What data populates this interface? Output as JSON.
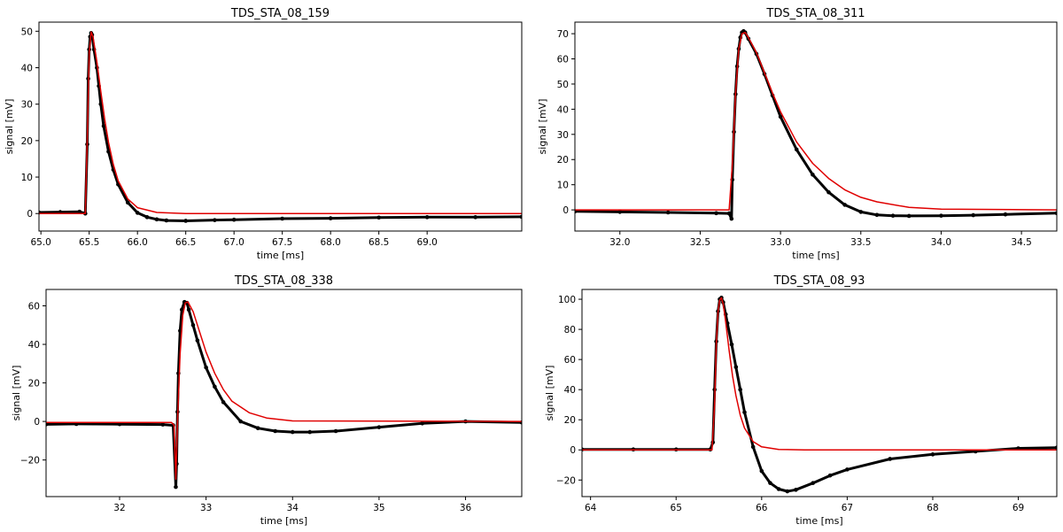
{
  "chart_data": [
    {
      "type": "line",
      "title": "TDS_STA_08_159",
      "xlabel": "time [ms]",
      "ylabel": "signal [mV]",
      "xlim": [
        64.98,
        69.98
      ],
      "ylim": [
        -4.8,
        52.5
      ],
      "xticks": [
        "65.0",
        "65.5",
        "66.0",
        "66.5",
        "67.0",
        "67.5",
        "68.0",
        "68.5",
        "69.0"
      ],
      "xtick_values": [
        65.0,
        65.5,
        66.0,
        66.5,
        67.0,
        67.5,
        68.0,
        68.5,
        69.0
      ],
      "yticks": [
        "0",
        "10",
        "20",
        "30",
        "40",
        "50"
      ],
      "ytick_values": [
        0,
        10,
        20,
        30,
        40,
        50
      ],
      "grid": false,
      "series": [
        {
          "kind": "points",
          "color": "#000000",
          "x": [
            64.98,
            65.2,
            65.4,
            65.46,
            65.48,
            65.49,
            65.5,
            65.51,
            65.52,
            65.53,
            65.55,
            65.58,
            65.6,
            65.62,
            65.65,
            65.7,
            65.75,
            65.8,
            65.9,
            66.0,
            66.1,
            66.2,
            66.3,
            66.5,
            66.8,
            67.0,
            67.5,
            68.0,
            68.5,
            69.0,
            69.5,
            69.98
          ],
          "y": [
            0.3,
            0.4,
            0.5,
            0.0,
            19.0,
            37.0,
            45.0,
            48.5,
            49.5,
            49.0,
            45.0,
            40.0,
            35.0,
            30.0,
            24.0,
            17.0,
            12.0,
            8.0,
            3.0,
            0.2,
            -1.0,
            -1.6,
            -1.9,
            -2.0,
            -1.8,
            -1.7,
            -1.4,
            -1.3,
            -1.1,
            -1.0,
            -1.0,
            -0.9
          ]
        },
        {
          "kind": "fit",
          "color": "#e00000",
          "x": [
            64.98,
            65.46,
            65.48,
            65.5,
            65.52,
            65.54,
            65.58,
            65.62,
            65.66,
            65.7,
            65.75,
            65.8,
            65.9,
            66.0,
            66.2,
            66.5,
            69.98
          ],
          "y": [
            0.0,
            0.0,
            20.0,
            44.0,
            49.8,
            48.5,
            41.5,
            33.5,
            26.0,
            19.5,
            13.5,
            9.0,
            4.0,
            1.6,
            0.3,
            0.0,
            0.0
          ]
        }
      ]
    },
    {
      "type": "line",
      "title": "TDS_STA_08_311",
      "xlabel": "time [ms]",
      "ylabel": "signal [mV]",
      "xlim": [
        31.72,
        34.72
      ],
      "ylim": [
        -8.4,
        74.6
      ],
      "xticks": [
        "32.0",
        "32.5",
        "33.0",
        "33.5",
        "34.0",
        "34.5"
      ],
      "xtick_values": [
        32.0,
        32.5,
        33.0,
        33.5,
        34.0,
        34.5
      ],
      "yticks": [
        "0",
        "10",
        "20",
        "30",
        "40",
        "50",
        "60",
        "70"
      ],
      "ytick_values": [
        0,
        10,
        20,
        30,
        40,
        50,
        60,
        70
      ],
      "grid": false,
      "series": [
        {
          "kind": "points",
          "color": "#000000",
          "x": [
            31.72,
            32.0,
            32.3,
            32.6,
            32.68,
            32.695,
            32.7,
            32.71,
            32.72,
            32.73,
            32.74,
            32.75,
            32.76,
            32.77,
            32.78,
            32.8,
            32.85,
            32.9,
            32.95,
            33.0,
            33.1,
            33.2,
            33.3,
            33.4,
            33.5,
            33.6,
            33.7,
            33.8,
            34.0,
            34.2,
            34.4,
            34.72
          ],
          "y": [
            -0.6,
            -0.8,
            -1.0,
            -1.3,
            -1.4,
            -3.5,
            12.0,
            31.0,
            46.0,
            57.0,
            64.0,
            68.5,
            70.5,
            71.0,
            70.5,
            68.0,
            62.0,
            54.0,
            45.5,
            37.0,
            24.0,
            14.0,
            7.0,
            2.0,
            -0.8,
            -2.0,
            -2.3,
            -2.4,
            -2.3,
            -2.1,
            -1.8,
            -1.3
          ]
        },
        {
          "kind": "fit",
          "color": "#e00000",
          "x": [
            31.72,
            32.68,
            32.7,
            32.72,
            32.74,
            32.76,
            32.78,
            32.8,
            32.85,
            32.9,
            32.95,
            33.0,
            33.1,
            33.2,
            33.3,
            33.4,
            33.5,
            33.6,
            33.8,
            34.0,
            34.72
          ],
          "y": [
            0.0,
            0.0,
            18.0,
            46.0,
            64.0,
            70.0,
            70.5,
            68.5,
            62.5,
            54.5,
            46.5,
            39.0,
            27.0,
            18.5,
            12.5,
            8.0,
            5.0,
            3.2,
            1.0,
            0.3,
            0.0
          ]
        }
      ]
    },
    {
      "type": "line",
      "title": "TDS_STA_08_338",
      "xlabel": "time [ms]",
      "ylabel": "signal [mV]",
      "xlim": [
        31.15,
        36.65
      ],
      "ylim": [
        -39.0,
        68.5
      ],
      "xticks": [
        "32",
        "33",
        "34",
        "35",
        "36"
      ],
      "xtick_values": [
        32,
        33,
        34,
        35,
        36
      ],
      "yticks": [
        "−20",
        "0",
        "20",
        "40",
        "60"
      ],
      "ytick_values": [
        -20,
        0,
        20,
        40,
        60
      ],
      "grid": false,
      "series": [
        {
          "kind": "points",
          "color": "#000000",
          "x": [
            31.15,
            31.5,
            32.0,
            32.5,
            32.62,
            32.65,
            32.66,
            32.67,
            32.68,
            32.7,
            32.72,
            32.75,
            32.78,
            32.8,
            32.85,
            32.9,
            33.0,
            33.1,
            33.2,
            33.4,
            33.6,
            33.8,
            34.0,
            34.2,
            34.5,
            35.0,
            35.5,
            36.0,
            36.65
          ],
          "y": [
            -1.5,
            -1.3,
            -1.4,
            -1.6,
            -2.0,
            -34.0,
            -22.0,
            5.0,
            25.0,
            47.0,
            58.0,
            62.0,
            61.5,
            58.0,
            50.0,
            42.0,
            28.0,
            18.0,
            10.0,
            0.0,
            -3.5,
            -5.0,
            -5.5,
            -5.5,
            -5.0,
            -3.0,
            -1.0,
            0.0,
            -0.5
          ]
        },
        {
          "kind": "fit",
          "color": "#e00000",
          "x": [
            31.15,
            32.6,
            32.63,
            32.65,
            32.67,
            32.7,
            32.73,
            32.76,
            32.79,
            32.85,
            32.9,
            33.0,
            33.1,
            33.2,
            33.3,
            33.5,
            33.7,
            34.0,
            36.65
          ],
          "y": [
            -0.5,
            -0.5,
            -2.0,
            -30.0,
            0.0,
            35.0,
            55.0,
            61.5,
            62.0,
            57.0,
            50.0,
            36.0,
            25.0,
            16.5,
            10.5,
            4.5,
            1.8,
            0.3,
            0.0
          ]
        }
      ]
    },
    {
      "type": "line",
      "title": "TDS_STA_08_93",
      "xlabel": "time [ms]",
      "ylabel": "signal [mV]",
      "xlim": [
        63.9,
        69.45
      ],
      "ylim": [
        -31.0,
        106.5
      ],
      "xticks": [
        "64",
        "65",
        "66",
        "67",
        "68",
        "69"
      ],
      "xtick_values": [
        64,
        65,
        66,
        67,
        68,
        69
      ],
      "yticks": [
        "−20",
        "0",
        "20",
        "40",
        "60",
        "80",
        "100"
      ],
      "ytick_values": [
        -20,
        0,
        20,
        40,
        60,
        80,
        100
      ],
      "grid": false,
      "series": [
        {
          "kind": "points",
          "color": "#000000",
          "x": [
            63.9,
            64.5,
            65.0,
            65.4,
            65.43,
            65.45,
            65.47,
            65.49,
            65.51,
            65.53,
            65.55,
            65.58,
            65.6,
            65.65,
            65.7,
            65.75,
            65.8,
            65.9,
            66.0,
            66.1,
            66.2,
            66.3,
            66.4,
            66.6,
            66.8,
            67.0,
            67.5,
            68.0,
            68.5,
            69.0,
            69.45
          ],
          "y": [
            0.3,
            0.3,
            0.3,
            0.3,
            5.0,
            40.0,
            72.0,
            92.0,
            100.0,
            101.0,
            98.0,
            90.0,
            84.0,
            70.0,
            55.0,
            40.0,
            25.0,
            2.0,
            -14.0,
            -22.0,
            -26.0,
            -27.5,
            -26.5,
            -22.0,
            -17.0,
            -13.0,
            -6.0,
            -3.0,
            -1.0,
            1.0,
            1.5
          ]
        },
        {
          "kind": "fit",
          "color": "#e00000",
          "x": [
            63.9,
            65.42,
            65.45,
            65.47,
            65.49,
            65.51,
            65.53,
            65.55,
            65.58,
            65.62,
            65.66,
            65.7,
            65.75,
            65.8,
            65.9,
            66.0,
            66.2,
            66.5,
            69.45
          ],
          "y": [
            0.0,
            0.0,
            30.0,
            70.0,
            92.0,
            99.5,
            101.0,
            97.0,
            85.0,
            66.0,
            49.0,
            36.0,
            23.0,
            14.5,
            5.5,
            2.0,
            0.3,
            0.0,
            0.0
          ]
        }
      ]
    }
  ]
}
